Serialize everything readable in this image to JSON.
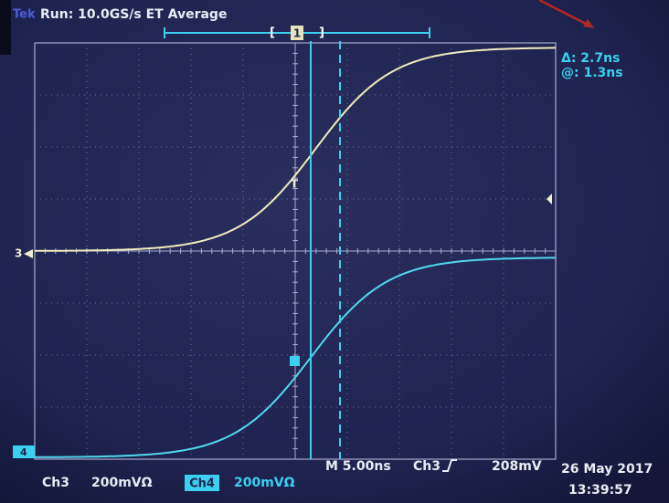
{
  "header": {
    "logo": "Tek",
    "status": "Run: 10.0GS/s ET Average",
    "trigger_position": "1"
  },
  "cursor_readout": {
    "delta": "Δ: 2.7ns",
    "position": "@: 1.3ns"
  },
  "markers": {
    "ch3": "3",
    "ch4": "4",
    "trigger_level": "T"
  },
  "footer": {
    "ch3_label": "Ch3",
    "ch3_scale": "200mVΩ",
    "ch4_label": "Ch4",
    "ch4_scale": "200mVΩ",
    "timebase": "M 5.00ns",
    "trigger_source": "Ch3",
    "trigger_level": "208mV",
    "date": "26 May 2017",
    "time": "13:39:57"
  }
}
